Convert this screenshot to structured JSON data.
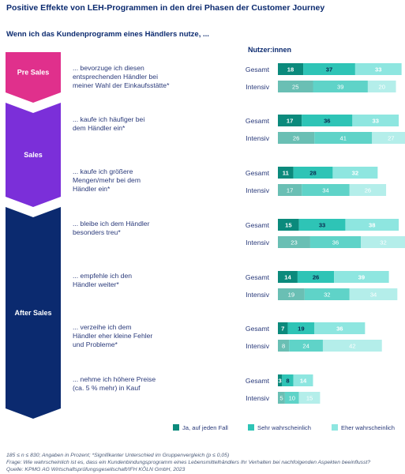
{
  "title": "Positive Effekte von LEH-Programmen in den drei Phasen der Customer Journey",
  "subtitle": "Wenn ich das Kundenprogramm eines Händlers nutze, ...",
  "users_header": "Nutzer:innen",
  "colors": {
    "pre_sales": "#e0308c",
    "sales": "#7b2fd9",
    "after_sales": "#0b2a6f",
    "ja": "#0b8a7c",
    "sehr": "#2ec4b6",
    "eher": "#8ee6e0",
    "ja_intensiv": "#6abfb4",
    "sehr_intensiv": "#5fd3c8",
    "eher_intensiv": "#b4eeea"
  },
  "phases": [
    {
      "label": "Pre Sales",
      "color": "#e0308c"
    },
    {
      "label": "Sales",
      "color": "#7b2fd9"
    },
    {
      "label": "After Sales",
      "color": "#0b2a6f"
    }
  ],
  "chart_data": {
    "type": "bar",
    "orientation": "horizontal",
    "stacked": true,
    "row_labels": [
      "Gesamt",
      "Intensiv"
    ],
    "series": [
      {
        "name": "Ja, auf jeden Fall"
      },
      {
        "name": "Sehr wahrscheinlich"
      },
      {
        "name": "Eher wahrscheinlich"
      }
    ],
    "statements": [
      {
        "text": [
          "... bevorzuge ich diesen",
          "entsprechenden Händler bei",
          "meiner Wahl der Einkaufsstätte*"
        ],
        "gesamt": [
          18,
          37,
          33
        ],
        "intensiv": [
          25,
          39,
          20
        ]
      },
      {
        "text": [
          "... kaufe ich häufiger bei",
          "dem Händler ein*"
        ],
        "gesamt": [
          17,
          36,
          33
        ],
        "intensiv": [
          26,
          41,
          27
        ]
      },
      {
        "text": [
          "... kaufe ich größere",
          "Mengen/mehr bei dem",
          "Händler ein*"
        ],
        "gesamt": [
          11,
          28,
          32
        ],
        "intensiv": [
          17,
          34,
          26
        ]
      },
      {
        "text": [
          "... bleibe ich dem Händler",
          "besonders treu*"
        ],
        "gesamt": [
          15,
          33,
          38
        ],
        "intensiv": [
          23,
          36,
          32
        ]
      },
      {
        "text": [
          "... empfehle ich den",
          "Händler weiter*"
        ],
        "gesamt": [
          14,
          26,
          39
        ],
        "intensiv": [
          19,
          32,
          34
        ]
      },
      {
        "text": [
          "... verzeihe ich dem",
          "Händler eher kleine Fehler",
          "und Probleme*"
        ],
        "gesamt": [
          7,
          19,
          36
        ],
        "intensiv": [
          8,
          24,
          42
        ]
      },
      {
        "text": [
          "... nehme ich höhere Preise",
          "(ca. 5 % mehr) in Kauf"
        ],
        "gesamt": [
          3,
          8,
          14
        ],
        "intensiv": [
          5,
          10,
          15
        ]
      }
    ]
  },
  "footer": [
    "185 ≤ n ≤ 830; Angaben in Prozent; *Signifikanter Unterschied im Gruppenvergleich (p ≤ 0,05)",
    "Frage: Wie wahrscheinlich ist es, dass ein Kundenbindungsprogramm eines Lebensmittelhändlers Ihr Verhalten bei nachfolgenden Aspekten beeinflusst?",
    "Quelle: KPMG AG Wirtschaftsprüfungsgesellschaft/IFH KÖLN GmbH, 2023"
  ]
}
